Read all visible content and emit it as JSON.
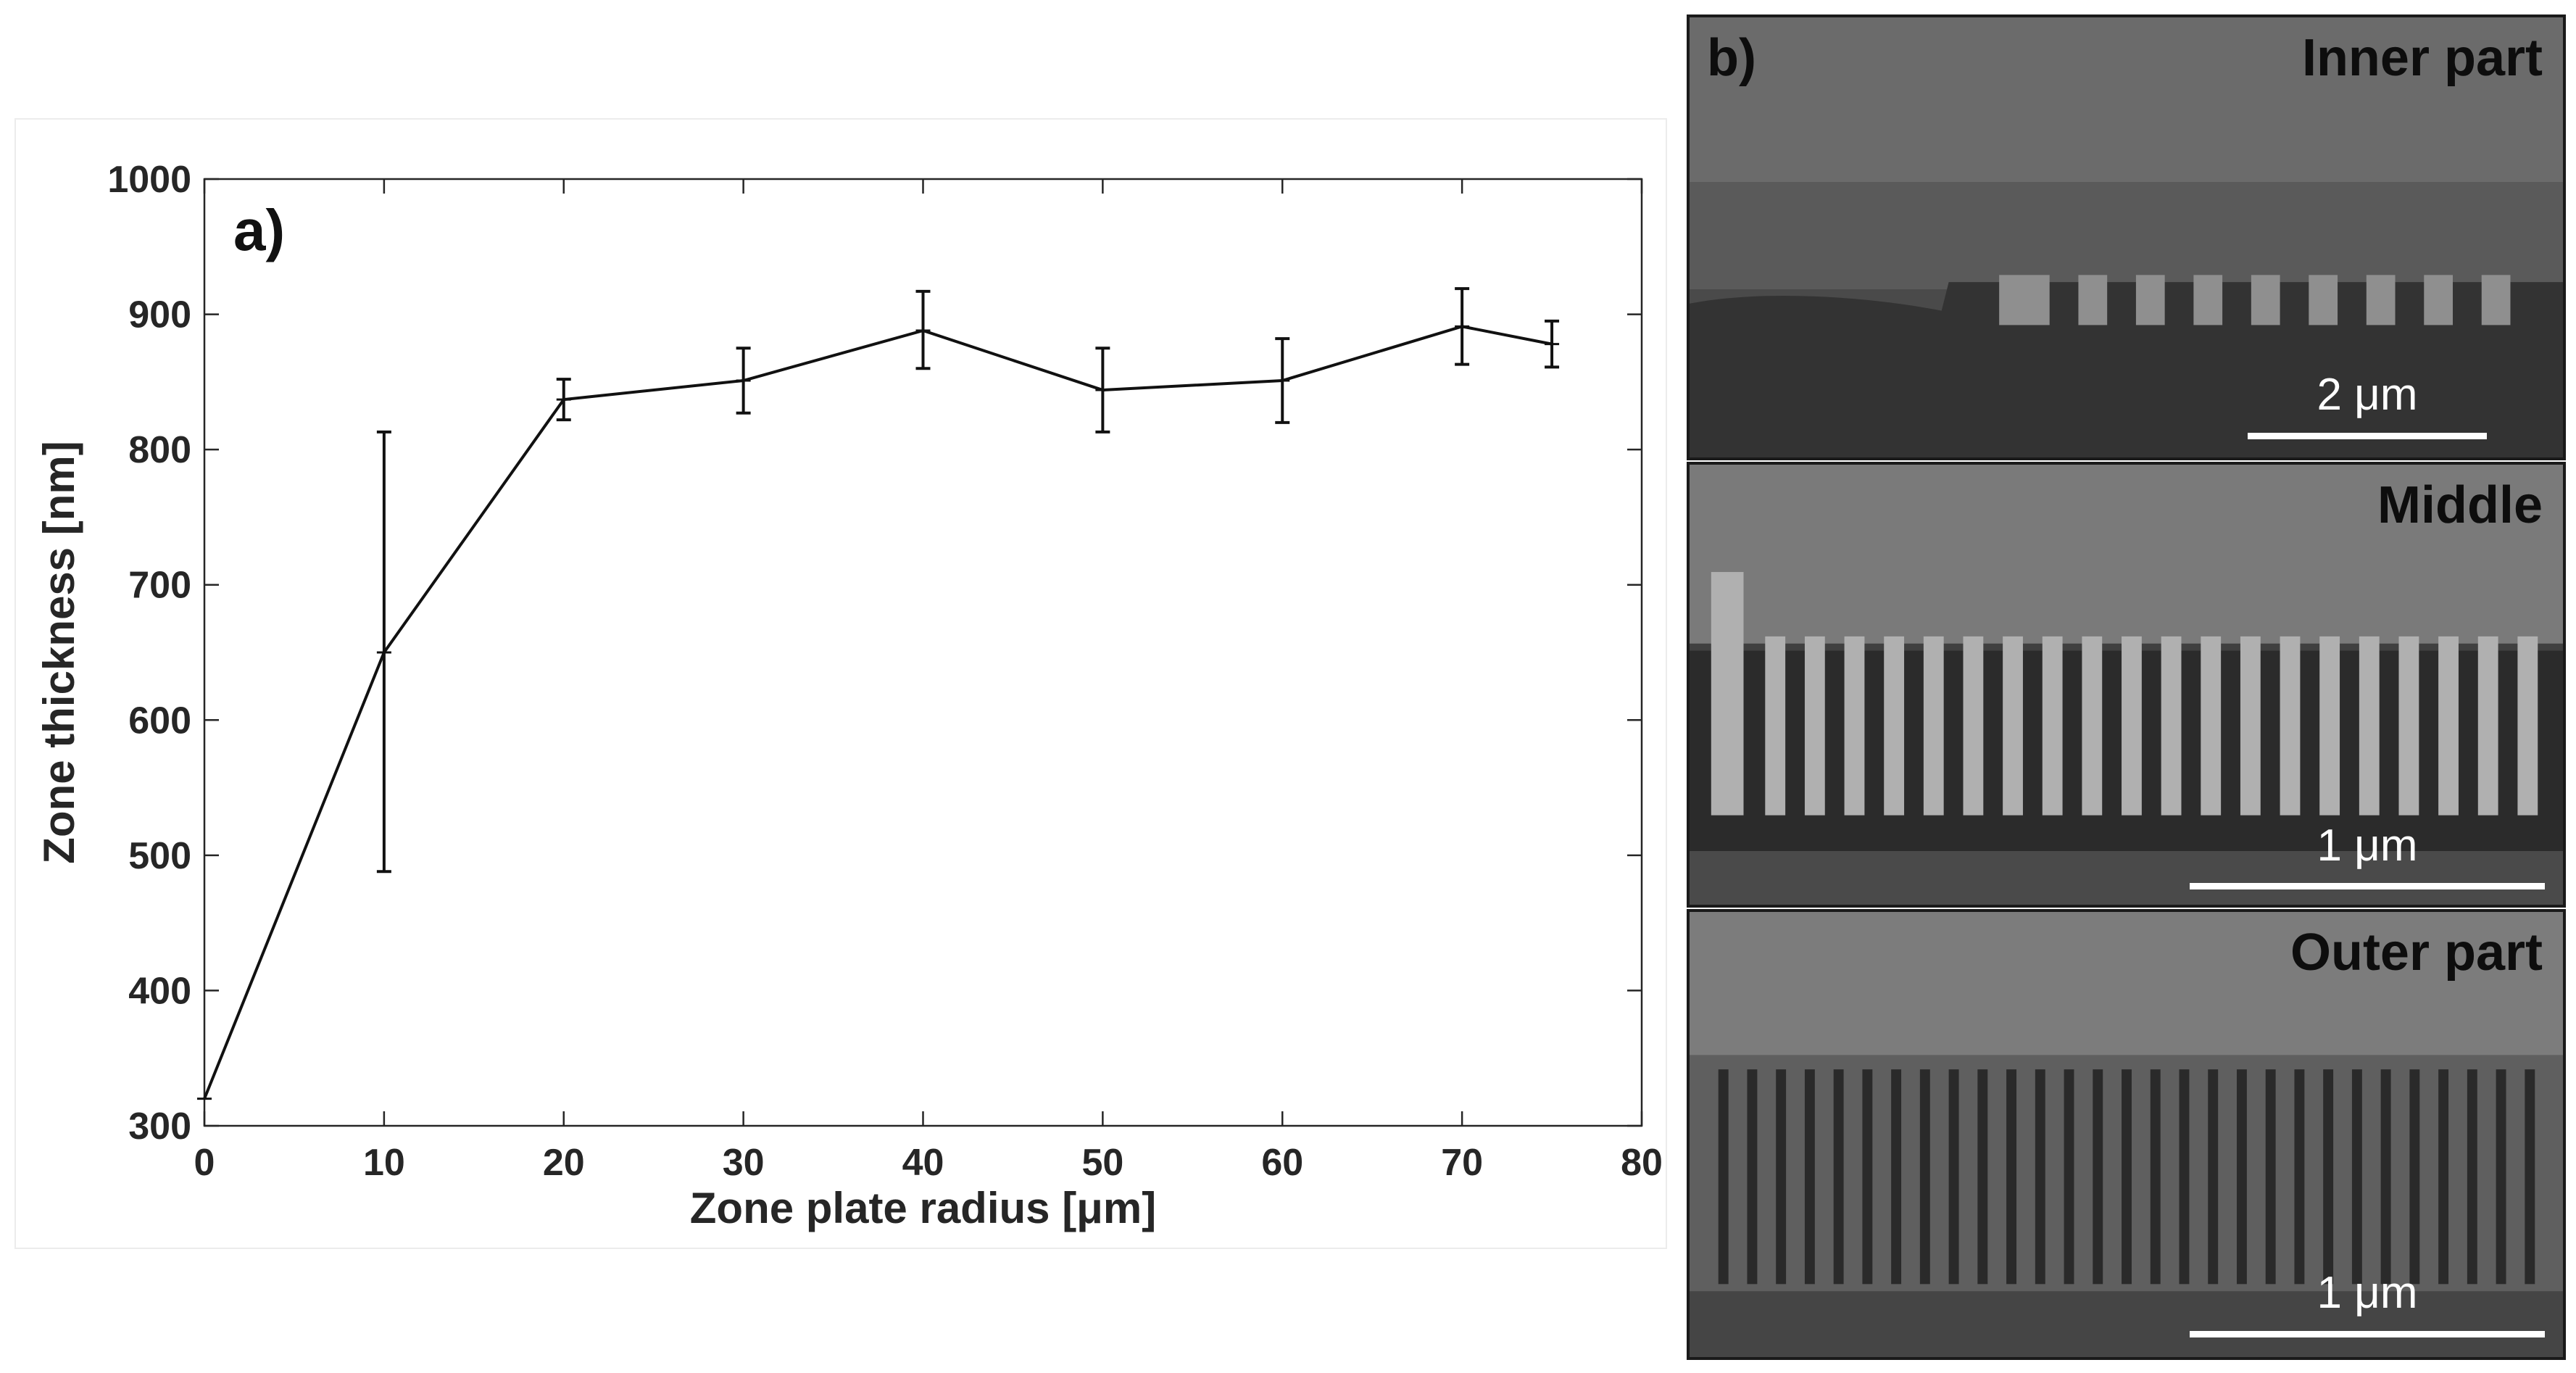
{
  "chart_data": {
    "type": "line",
    "panel_label": "a)",
    "xlabel": "Zone plate radius [μm]",
    "ylabel": "Zone thickness [nm]",
    "xlim": [
      0,
      80
    ],
    "ylim": [
      300,
      1000
    ],
    "x_ticks": [
      0,
      10,
      20,
      30,
      40,
      50,
      60,
      70,
      80
    ],
    "y_ticks": [
      300,
      400,
      500,
      600,
      700,
      800,
      900,
      1000
    ],
    "grid": false,
    "series": [
      {
        "name": "Zone thickness",
        "x": [
          0,
          10,
          20,
          30,
          40,
          50,
          60,
          70,
          75
        ],
        "y": [
          320,
          650,
          837,
          851,
          888,
          844,
          851,
          891,
          878
        ],
        "y_err_low": [
          null,
          488,
          822,
          827,
          860,
          813,
          820,
          863,
          861
        ],
        "y_err_high": [
          null,
          813,
          852,
          875,
          917,
          875,
          882,
          919,
          895
        ]
      }
    ]
  },
  "sem_figure": {
    "panel_label": "b)",
    "panels": [
      {
        "label": "Inner part",
        "scale_label": "2 μm"
      },
      {
        "label": "Middle",
        "scale_label": "1 μm"
      },
      {
        "label": "Outer part",
        "scale_label": "1 μm"
      }
    ],
    "colors": {
      "background": "#4a4a4a",
      "substrate": "#333333",
      "zone": "#a8a8a8",
      "text": "#0d0d0d",
      "scale": "#ffffff"
    }
  }
}
